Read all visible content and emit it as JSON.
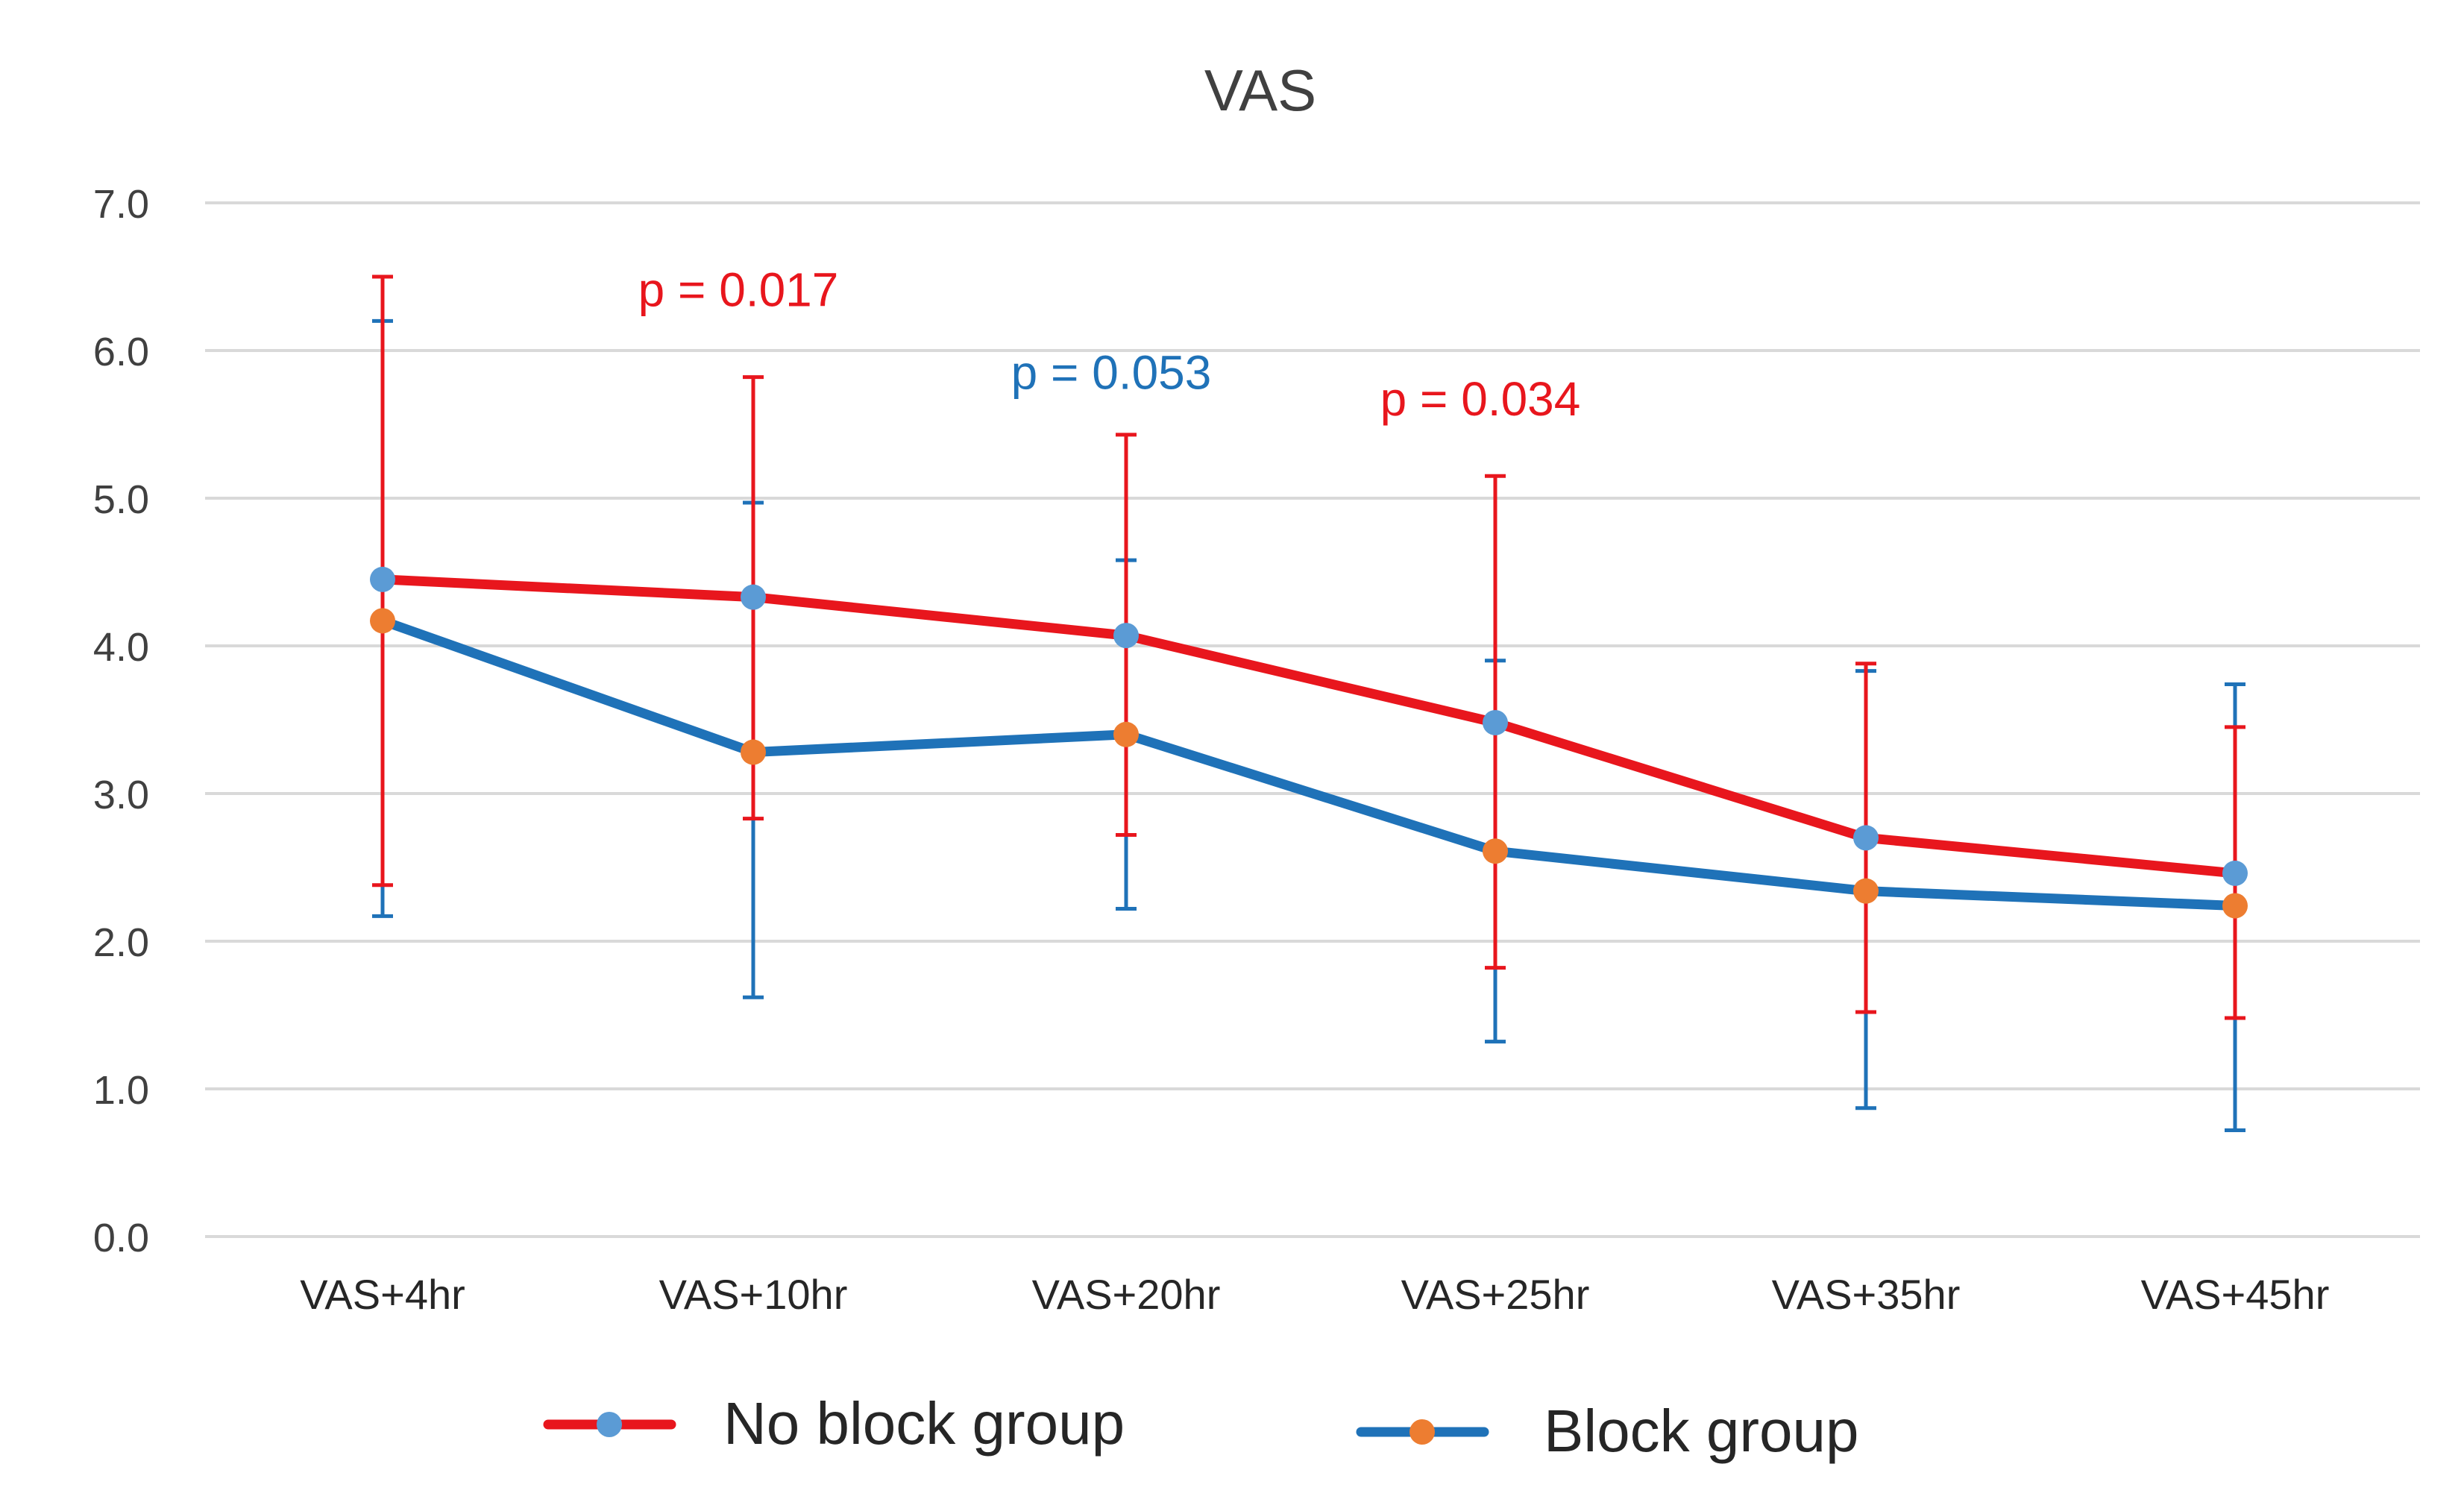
{
  "chart_data": {
    "type": "line",
    "title": "VAS",
    "xlabel": "",
    "ylabel": "",
    "ylim": [
      0,
      7
    ],
    "yticks": [
      "0.0",
      "1.0",
      "2.0",
      "3.0",
      "4.0",
      "5.0",
      "6.0",
      "7.0"
    ],
    "grid": true,
    "legend_position": "bottom",
    "categories": [
      "VAS+4hr",
      "VAS+10hr",
      "VAS+20hr",
      "VAS+25hr",
      "VAS+35hr",
      "VAS+45hr"
    ],
    "series": [
      {
        "name": "No block group",
        "line_color": "#e8161d",
        "marker_color": "#5b9bd5",
        "values": [
          4.45,
          4.33,
          4.07,
          3.48,
          2.7,
          2.46
        ],
        "err_low": [
          2.38,
          2.83,
          2.72,
          1.82,
          1.52,
          1.48
        ],
        "err_high": [
          6.5,
          5.82,
          5.43,
          5.15,
          3.88,
          3.45
        ]
      },
      {
        "name": "Block group",
        "line_color": "#1f72b8",
        "marker_color": "#ed7d31",
        "values": [
          4.17,
          3.28,
          3.4,
          2.61,
          2.34,
          2.24
        ],
        "err_low": [
          2.17,
          1.62,
          2.22,
          1.32,
          0.87,
          0.72
        ],
        "err_high": [
          6.2,
          4.97,
          4.58,
          3.9,
          3.83,
          3.74
        ]
      }
    ],
    "annotations": [
      {
        "text": "p = 0.017",
        "category": "VAS+10hr",
        "y": 6.3,
        "color": "#e8161d"
      },
      {
        "text": "p = 0.053",
        "category": "VAS+20hr",
        "y": 5.74,
        "color": "#1f72b8"
      },
      {
        "text": "p = 0.034",
        "category": "VAS+25hr",
        "y": 5.56,
        "color": "#e8161d"
      }
    ]
  }
}
